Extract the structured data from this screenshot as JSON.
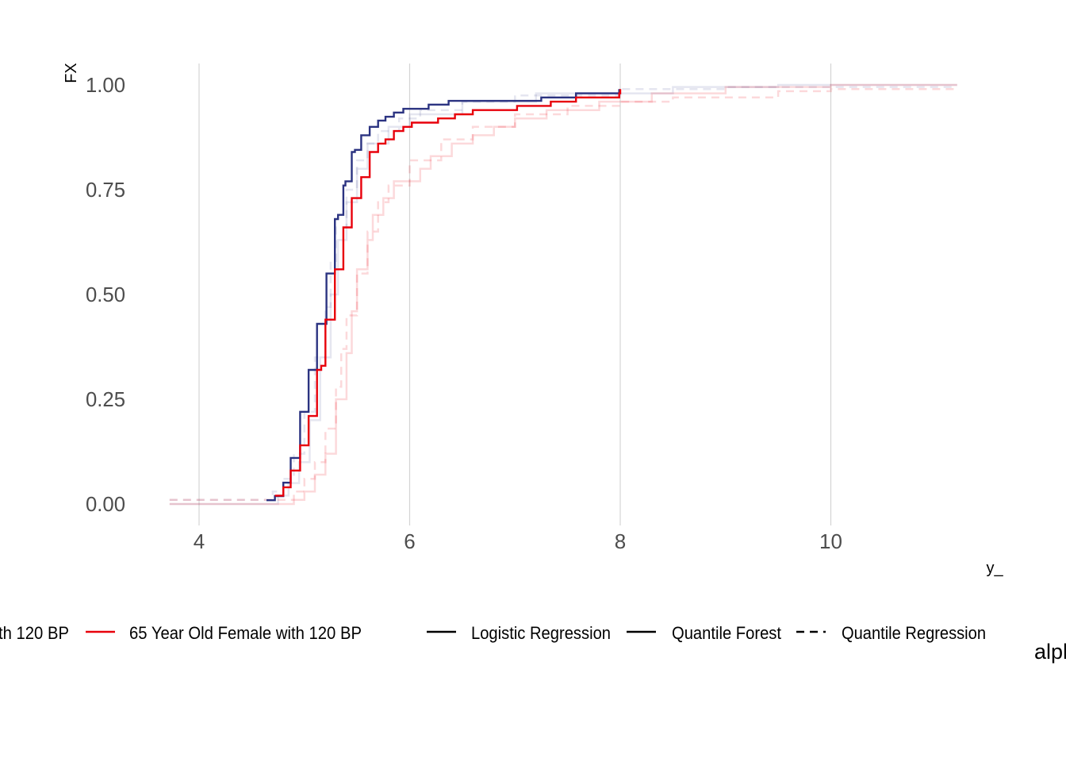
{
  "chart_data": {
    "type": "line",
    "subtype": "step-ecdf",
    "title": "",
    "xlabel": "y_",
    "ylabel": "FX",
    "xlim": [
      3.72,
      11.22
    ],
    "ylim": [
      0,
      1
    ],
    "xticks": [
      {
        "value": 4,
        "label": "4"
      },
      {
        "value": 6,
        "label": "6"
      },
      {
        "value": 8,
        "label": "8"
      },
      {
        "value": 10,
        "label": "10"
      }
    ],
    "yticks": [
      {
        "value": 0,
        "label": "0.00"
      },
      {
        "value": 0.25,
        "label": "0.25"
      },
      {
        "value": 0.5,
        "label": "0.50"
      },
      {
        "value": 0.75,
        "label": "0.75"
      },
      {
        "value": 1,
        "label": "1.00"
      }
    ],
    "grid": {
      "vertical_major": true,
      "horizontal": false
    },
    "legend": {
      "position": "bottom",
      "color_items": [
        {
          "label": "th 120 BP",
          "color": "#2b3381"
        },
        {
          "label": "65 Year Old Female with 120 BP",
          "color": "#e8000b"
        }
      ],
      "linetype_items": [
        {
          "label": "Logistic Regression",
          "dash": "solid"
        },
        {
          "label": "Quantile Forest",
          "dash": "solid"
        },
        {
          "label": "Quantile Regression",
          "dash": "dashed"
        }
      ],
      "alpha_title": "alph"
    },
    "series": [
      {
        "name": "Quantile Regression (person 1)",
        "color": "#2b3381",
        "alpha": 0.12,
        "dash": "dashed",
        "points": [
          [
            3.72,
            0.01
          ],
          [
            4.6,
            0.01
          ],
          [
            4.7,
            0.03
          ],
          [
            4.8,
            0.06
          ],
          [
            4.9,
            0.12
          ],
          [
            5.0,
            0.22
          ],
          [
            5.1,
            0.35
          ],
          [
            5.2,
            0.47
          ],
          [
            5.25,
            0.58
          ],
          [
            5.3,
            0.66
          ],
          [
            5.4,
            0.75
          ],
          [
            5.5,
            0.82
          ],
          [
            5.6,
            0.86
          ],
          [
            5.7,
            0.89
          ],
          [
            5.9,
            0.92
          ],
          [
            6.1,
            0.94
          ],
          [
            6.5,
            0.96
          ],
          [
            7.0,
            0.975
          ],
          [
            8.0,
            0.99
          ],
          [
            9.0,
            0.995
          ],
          [
            11.2,
            0.995
          ]
        ]
      },
      {
        "name": "Quantile Forest (person 1)",
        "color": "#2b3381",
        "alpha": 0.12,
        "dash": "solid",
        "points": [
          [
            3.72,
            0.0
          ],
          [
            4.6,
            0.0
          ],
          [
            4.75,
            0.02
          ],
          [
            4.85,
            0.05
          ],
          [
            4.95,
            0.1
          ],
          [
            5.05,
            0.2
          ],
          [
            5.15,
            0.35
          ],
          [
            5.25,
            0.5
          ],
          [
            5.32,
            0.63
          ],
          [
            5.4,
            0.72
          ],
          [
            5.5,
            0.8
          ],
          [
            5.6,
            0.86
          ],
          [
            5.8,
            0.9
          ],
          [
            6.0,
            0.93
          ],
          [
            6.5,
            0.96
          ],
          [
            7.2,
            0.98
          ],
          [
            8.5,
            0.995
          ],
          [
            9.5,
            1.0
          ],
          [
            11.2,
            1.0
          ]
        ]
      },
      {
        "name": "Quantile Regression (65 Year Old Female)",
        "color": "#e8000b",
        "alpha": 0.15,
        "dash": "dashed",
        "points": [
          [
            3.72,
            0.01
          ],
          [
            4.7,
            0.01
          ],
          [
            4.9,
            0.03
          ],
          [
            5.0,
            0.06
          ],
          [
            5.1,
            0.1
          ],
          [
            5.2,
            0.18
          ],
          [
            5.3,
            0.28
          ],
          [
            5.35,
            0.37
          ],
          [
            5.4,
            0.45
          ],
          [
            5.5,
            0.55
          ],
          [
            5.6,
            0.65
          ],
          [
            5.7,
            0.72
          ],
          [
            5.8,
            0.76
          ],
          [
            6.0,
            0.82
          ],
          [
            6.3,
            0.87
          ],
          [
            6.6,
            0.9
          ],
          [
            7.0,
            0.93
          ],
          [
            7.5,
            0.95
          ],
          [
            8.0,
            0.96
          ],
          [
            8.5,
            0.97
          ],
          [
            9.5,
            0.985
          ],
          [
            10.0,
            0.99
          ],
          [
            11.2,
            0.99
          ]
        ]
      },
      {
        "name": "Quantile Forest (65 Year Old Female)",
        "color": "#e8000b",
        "alpha": 0.15,
        "dash": "solid",
        "points": [
          [
            3.72,
            0.0
          ],
          [
            4.7,
            0.0
          ],
          [
            4.9,
            0.01
          ],
          [
            5.0,
            0.03
          ],
          [
            5.1,
            0.07
          ],
          [
            5.2,
            0.12
          ],
          [
            5.3,
            0.25
          ],
          [
            5.4,
            0.36
          ],
          [
            5.45,
            0.46
          ],
          [
            5.5,
            0.56
          ],
          [
            5.6,
            0.63
          ],
          [
            5.65,
            0.69
          ],
          [
            5.75,
            0.73
          ],
          [
            5.85,
            0.77
          ],
          [
            6.1,
            0.8
          ],
          [
            6.2,
            0.83
          ],
          [
            6.4,
            0.86
          ],
          [
            6.6,
            0.88
          ],
          [
            6.8,
            0.9
          ],
          [
            7.0,
            0.92
          ],
          [
            7.3,
            0.94
          ],
          [
            7.8,
            0.96
          ],
          [
            8.3,
            0.98
          ],
          [
            9.0,
            0.995
          ],
          [
            10.0,
            1.0
          ],
          [
            11.2,
            1.0
          ]
        ]
      },
      {
        "name": "Logistic Regression (person 1)",
        "color": "#2b3381",
        "alpha": 1,
        "dash": "solid",
        "points": [
          [
            4.64,
            0.009
          ],
          [
            4.72,
            0.019
          ],
          [
            4.8,
            0.051
          ],
          [
            4.87,
            0.11
          ],
          [
            4.96,
            0.22
          ],
          [
            5.04,
            0.32
          ],
          [
            5.12,
            0.43
          ],
          [
            5.21,
            0.55
          ],
          [
            5.29,
            0.68
          ],
          [
            5.32,
            0.69
          ],
          [
            5.37,
            0.76
          ],
          [
            5.39,
            0.77
          ],
          [
            5.45,
            0.84
          ],
          [
            5.48,
            0.845
          ],
          [
            5.54,
            0.88
          ],
          [
            5.62,
            0.9
          ],
          [
            5.7,
            0.915
          ],
          [
            5.77,
            0.924
          ],
          [
            5.85,
            0.934
          ],
          [
            5.94,
            0.943
          ],
          [
            6.18,
            0.953
          ],
          [
            6.37,
            0.962
          ],
          [
            7.25,
            0.97
          ],
          [
            7.58,
            0.98
          ],
          [
            7.99,
            0.99
          ]
        ]
      },
      {
        "name": "Logistic Regression (65 Year Old Female)",
        "color": "#e8000b",
        "alpha": 1,
        "dash": "solid",
        "points": [
          [
            4.72,
            0.02
          ],
          [
            4.8,
            0.04
          ],
          [
            4.87,
            0.08
          ],
          [
            4.96,
            0.14
          ],
          [
            5.04,
            0.21
          ],
          [
            5.12,
            0.32
          ],
          [
            5.16,
            0.33
          ],
          [
            5.2,
            0.44
          ],
          [
            5.29,
            0.56
          ],
          [
            5.37,
            0.66
          ],
          [
            5.45,
            0.73
          ],
          [
            5.54,
            0.78
          ],
          [
            5.62,
            0.84
          ],
          [
            5.7,
            0.86
          ],
          [
            5.77,
            0.87
          ],
          [
            5.85,
            0.89
          ],
          [
            5.94,
            0.9
          ],
          [
            6.02,
            0.91
          ],
          [
            6.27,
            0.92
          ],
          [
            6.43,
            0.93
          ],
          [
            6.6,
            0.94
          ],
          [
            7.02,
            0.95
          ],
          [
            7.34,
            0.96
          ],
          [
            7.58,
            0.97
          ],
          [
            7.99,
            0.98
          ],
          [
            8.0,
            0.99
          ]
        ]
      }
    ]
  }
}
